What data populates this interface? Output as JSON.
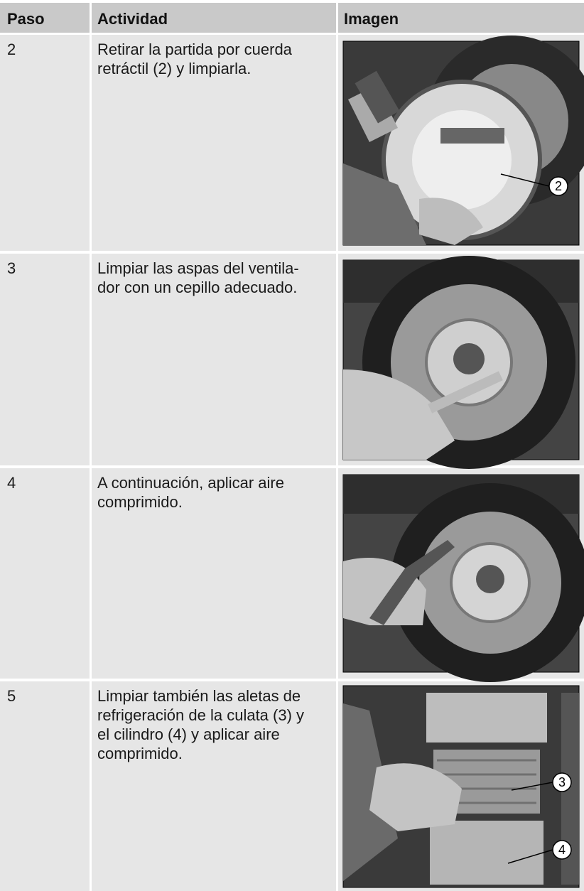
{
  "header": {
    "paso": "Paso",
    "actividad": "Actividad",
    "imagen": "Imagen"
  },
  "rows": [
    {
      "step": "2",
      "activity": [
        "Retirar la partida por cuerda",
        "retráctil (2) y limpiarla."
      ],
      "callouts": [
        "2"
      ]
    },
    {
      "step": "3",
      "activity": [
        "Limpiar las aspas del ventila-",
        "dor con un cepillo adecuado."
      ],
      "callouts": []
    },
    {
      "step": "4",
      "activity": [
        "A continuación, aplicar aire",
        "comprimido."
      ],
      "callouts": []
    },
    {
      "step": "5",
      "activity": [
        "Limpiar también las aletas de",
        "refrigeración de la culata (3) y",
        "el cilindro (4) y aplicar aire",
        "comprimido."
      ],
      "callouts": [
        "3",
        "4"
      ]
    }
  ]
}
